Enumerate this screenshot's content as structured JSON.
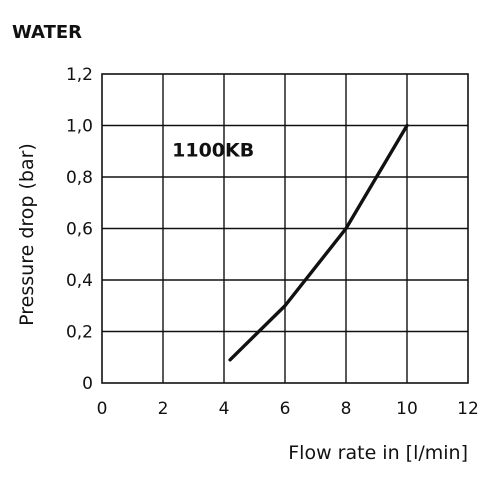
{
  "chart_data": {
    "type": "line",
    "title": "WATER",
    "xlabel": "Flow rate in [l/min]",
    "ylabel": "Pressure drop (bar)",
    "xlim": [
      0,
      12
    ],
    "ylim": [
      0,
      1.2
    ],
    "x_ticks": [
      "0",
      "2",
      "4",
      "6",
      "8",
      "10",
      "12"
    ],
    "y_ticks": [
      "0",
      "0,2",
      "0,4",
      "0,6",
      "0,8",
      "1,0",
      "1,2"
    ],
    "grid": true,
    "series": [
      {
        "name": "1100KB",
        "x": [
          4.2,
          6,
          8,
          10
        ],
        "y": [
          0.09,
          0.3,
          0.6,
          1.0
        ]
      }
    ]
  }
}
